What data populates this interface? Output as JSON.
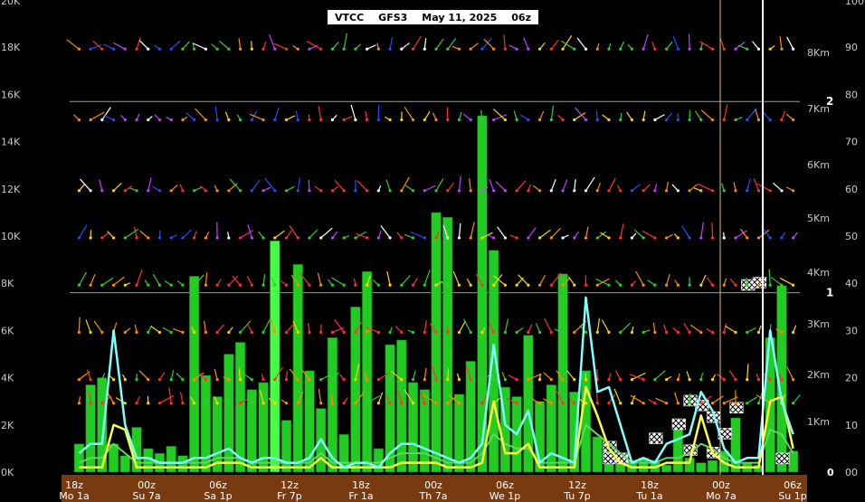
{
  "header": {
    "station": "VTCC",
    "model": "GFS3",
    "date": "May 11, 2025",
    "cycle": "06z"
  },
  "colors": {
    "background": "#000000",
    "bar_fill": "#22cc22",
    "bar_highlight": "#44ff44",
    "humidity_line": "#80ffff",
    "yellow_line": "#ffff40",
    "green_line": "#60d860",
    "time_bar": "#7a3a10",
    "gridline": "#9a9a9a"
  },
  "chart_data": {
    "type": "bar",
    "left_axis": {
      "ticks": [
        "0K",
        "2K",
        "4K",
        "6K",
        "8K",
        "10K",
        "12K",
        "14K",
        "16K",
        "18K",
        "20K"
      ],
      "min": 0,
      "max": 20000
    },
    "right_axis_percent": {
      "ticks": [
        "00",
        "10",
        "20",
        "30",
        "40",
        "50",
        "60",
        "70",
        "80",
        "90",
        "100"
      ],
      "min": 0,
      "max": 100
    },
    "km_labels": [
      "1Km",
      "2Km",
      "3Km",
      "4Km",
      "5Km",
      "6Km",
      "7Km",
      "8Km"
    ],
    "reference_lines": [
      {
        "label": "1",
        "value": 7600
      },
      {
        "label": "2",
        "value": 15700
      }
    ],
    "zero_marker": "0",
    "x_hour_labels": [
      "18z",
      "00z",
      "06z",
      "12z",
      "18z",
      "00z",
      "06z",
      "12z",
      "18z",
      "00z",
      "06z"
    ],
    "x_day_labels": [
      "Mo 1a",
      "Su 7a",
      "Sa 1p",
      "Fr 7p",
      "Fr 1a",
      "Th 7a",
      "We 1p",
      "Tu 7p",
      "Tu 1a",
      "Mo 7a",
      "Su 1p"
    ],
    "bars": [
      1200,
      3700,
      4000,
      1200,
      700,
      1900,
      1000,
      800,
      1100,
      700,
      8300,
      4100,
      3200,
      5000,
      5500,
      3500,
      3800,
      9800,
      2200,
      8800,
      4300,
      2700,
      5700,
      1600,
      7000,
      8500,
      1000,
      5400,
      5600,
      3800,
      3500,
      11000,
      10800,
      3300,
      4700,
      15100,
      9400,
      3600,
      3200,
      5800,
      3000,
      3700,
      8400,
      3400,
      4300,
      1500,
      900,
      600,
      500,
      600,
      500,
      300,
      2200,
      600,
      400,
      500,
      900,
      2300,
      400,
      300,
      5700,
      7900,
      900
    ],
    "humidity_series": {
      "name": "",
      "values": [
        4,
        6,
        6,
        30,
        10,
        3,
        3,
        2,
        2,
        2,
        3,
        3,
        4,
        5,
        3,
        2,
        3,
        3,
        2,
        2,
        3,
        7,
        3,
        1,
        2,
        2,
        1,
        4,
        6,
        6,
        5,
        4,
        3,
        2,
        3,
        6,
        27,
        10,
        8,
        13,
        2,
        4,
        3,
        2,
        37,
        17,
        18,
        10,
        2,
        3,
        2,
        6,
        7,
        8,
        17,
        13,
        5,
        2,
        3,
        3,
        30,
        15,
        8
      ]
    },
    "yellow_series": {
      "name": "",
      "values": [
        1,
        1,
        1,
        10,
        9,
        1,
        1,
        1,
        1,
        1,
        1,
        1,
        2,
        2,
        2,
        1,
        1,
        1,
        1,
        1,
        1,
        3,
        1,
        1,
        1,
        1,
        1,
        1,
        2,
        2,
        2,
        2,
        1,
        1,
        1,
        2,
        15,
        4,
        4,
        6,
        1,
        1,
        1,
        1,
        18,
        12,
        5,
        2,
        1,
        1,
        1,
        2,
        2,
        2,
        12,
        4,
        2,
        1,
        1,
        1,
        15,
        16,
        5
      ]
    },
    "green_series": {
      "name": "",
      "values": [
        2,
        3,
        3,
        6,
        4,
        2,
        2,
        2,
        2,
        2,
        2,
        2,
        3,
        3,
        3,
        2,
        2,
        2,
        2,
        2,
        2,
        4,
        2,
        2,
        2,
        2,
        2,
        3,
        4,
        4,
        4,
        3,
        2,
        2,
        2,
        4,
        8,
        6,
        5,
        5,
        2,
        2,
        2,
        2,
        10,
        8,
        6,
        4,
        2,
        2,
        2,
        3,
        3,
        4,
        6,
        5,
        3,
        2,
        2,
        2,
        9,
        8,
        4
      ]
    },
    "hatched_cells": [
      {
        "col": 46,
        "level": 350
      },
      {
        "col": 47,
        "level": 350
      },
      {
        "col": 50,
        "level": 1200
      },
      {
        "col": 52,
        "level": 1800
      },
      {
        "col": 53,
        "level": 2800
      },
      {
        "col": 54,
        "level": 2600
      },
      {
        "col": 55,
        "level": 2100
      },
      {
        "col": 56,
        "level": 1400
      },
      {
        "col": 57,
        "level": 2500
      },
      {
        "col": 58,
        "level": 7700
      },
      {
        "col": 59,
        "level": 7800
      },
      {
        "col": 61,
        "level": 350
      },
      {
        "col": 46,
        "level": 850
      },
      {
        "col": 53,
        "level": 700
      },
      {
        "col": 55,
        "level": 600
      }
    ]
  }
}
